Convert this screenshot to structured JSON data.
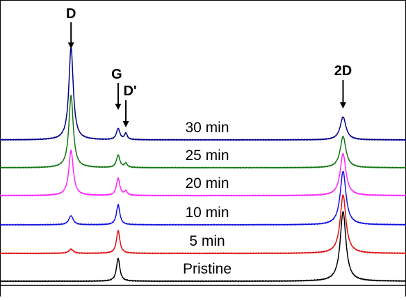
{
  "chart_data": {
    "type": "line",
    "title": "",
    "xlabel": "",
    "ylabel": "",
    "grid": false,
    "legend": "none",
    "x_domain": [
      1000,
      3000
    ],
    "peaks": [
      {
        "label": "D",
        "x": 1350
      },
      {
        "label": "G",
        "x": 1582
      },
      {
        "label": "D'",
        "x": 1620
      },
      {
        "label": "2D",
        "x": 2690
      }
    ],
    "series": [
      {
        "name": "Pristine",
        "color": "#000000",
        "D": 0,
        "G": 0.33,
        "Dp": 0,
        "TwoD": 1.0
      },
      {
        "name": "5 min",
        "color": "#dd1111",
        "D": 0.06,
        "G": 0.33,
        "Dp": 0,
        "TwoD": 0.84
      },
      {
        "name": "10 min",
        "color": "#1111dd",
        "D": 0.13,
        "G": 0.29,
        "Dp": 0,
        "TwoD": 0.77
      },
      {
        "name": "20 min",
        "color": "#ff22ff",
        "D": 0.65,
        "G": 0.25,
        "Dp": 0.06,
        "TwoD": 0.6
      },
      {
        "name": "25 min",
        "color": "#117711",
        "D": 1.04,
        "G": 0.18,
        "Dp": 0.06,
        "TwoD": 0.45
      },
      {
        "name": "30 min",
        "color": "#000088",
        "D": 1.33,
        "G": 0.16,
        "Dp": 0.09,
        "TwoD": 0.33
      }
    ]
  }
}
